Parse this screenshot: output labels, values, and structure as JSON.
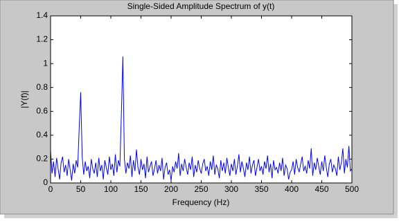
{
  "chart_data": {
    "type": "line",
    "title": "Single-Sided Amplitude Spectrum of y(t)",
    "x_label": "Frequency (Hz)",
    "y_label": "|Y(f)|",
    "xlim": [
      0,
      500
    ],
    "xticks": [
      0,
      50,
      100,
      150,
      200,
      250,
      300,
      350,
      400,
      450,
      500
    ],
    "ylim": [
      0,
      1.4
    ],
    "yticks": [
      0,
      0.2,
      0.4,
      0.6,
      0.8,
      1,
      1.2,
      1.4
    ],
    "grid": false,
    "series": [
      {
        "color": "#0000ff",
        "x": [
          0,
          2.5,
          5,
          7.5,
          10,
          12.5,
          15,
          17.5,
          20,
          22.5,
          25,
          27.5,
          30,
          32.5,
          35,
          37.5,
          40,
          42.5,
          45,
          47.5,
          50,
          52.5,
          55,
          57.5,
          60,
          62.5,
          65,
          67.5,
          70,
          72.5,
          75,
          77.5,
          80,
          82.5,
          85,
          87.5,
          90,
          92.5,
          95,
          97.5,
          100,
          102.5,
          105,
          107.5,
          110,
          112.5,
          115,
          117.5,
          120,
          122.5,
          125,
          127.5,
          130,
          132.5,
          135,
          137.5,
          140,
          142.5,
          145,
          147.5,
          150,
          152.5,
          155,
          157.5,
          160,
          162.5,
          165,
          167.5,
          170,
          172.5,
          175,
          177.5,
          180,
          182.5,
          185,
          187.5,
          190,
          192.5,
          195,
          197.5,
          200,
          202.5,
          205,
          207.5,
          210,
          212.5,
          215,
          217.5,
          220,
          222.5,
          225,
          227.5,
          230,
          232.5,
          235,
          237.5,
          240,
          242.5,
          245,
          247.5,
          250,
          252.5,
          255,
          257.5,
          260,
          262.5,
          265,
          267.5,
          270,
          272.5,
          275,
          277.5,
          280,
          282.5,
          285,
          287.5,
          290,
          292.5,
          295,
          297.5,
          300,
          302.5,
          305,
          307.5,
          310,
          312.5,
          315,
          317.5,
          320,
          322.5,
          325,
          327.5,
          330,
          332.5,
          335,
          337.5,
          340,
          342.5,
          345,
          347.5,
          350,
          352.5,
          355,
          357.5,
          360,
          362.5,
          365,
          367.5,
          370,
          372.5,
          375,
          377.5,
          380,
          382.5,
          385,
          387.5,
          390,
          392.5,
          395,
          397.5,
          400,
          402.5,
          405,
          407.5,
          410,
          412.5,
          415,
          417.5,
          420,
          422.5,
          425,
          427.5,
          430,
          432.5,
          435,
          437.5,
          440,
          442.5,
          445,
          447.5,
          450,
          452.5,
          455,
          457.5,
          460,
          462.5,
          465,
          467.5,
          470,
          472.5,
          475,
          477.5,
          480,
          482.5,
          485,
          487.5,
          490,
          492.5,
          495,
          497.5,
          500
        ],
        "values": [
          0.27,
          0.08,
          0.18,
          0.05,
          0.21,
          0.12,
          0.03,
          0.17,
          0.22,
          0.09,
          0.15,
          0.06,
          0.2,
          0.11,
          0.02,
          0.16,
          0.08,
          0.19,
          0.13,
          0.46,
          0.76,
          0.22,
          0.07,
          0.18,
          0.1,
          0.14,
          0.04,
          0.2,
          0.12,
          0.08,
          0.17,
          0.05,
          0.21,
          0.1,
          0.15,
          0.03,
          0.19,
          0.13,
          0.07,
          0.22,
          0.11,
          0.16,
          0.06,
          0.24,
          0.09,
          0.19,
          0.14,
          0.58,
          1.06,
          0.2,
          0.08,
          0.17,
          0.12,
          0.23,
          0.05,
          0.19,
          0.1,
          0.28,
          0.13,
          0.07,
          0.2,
          0.11,
          0.16,
          0.04,
          0.22,
          0.09,
          0.14,
          0.18,
          0.06,
          0.12,
          0.19,
          0.08,
          0.15,
          0.1,
          0.21,
          0.03,
          0.13,
          0.17,
          0.07,
          0.11,
          0.02,
          0.14,
          0.09,
          0.18,
          0.12,
          0.25,
          0.06,
          0.16,
          0.1,
          0.2,
          0.13,
          0.07,
          0.17,
          0.11,
          0.22,
          0.05,
          0.15,
          0.09,
          0.19,
          0.12,
          0.08,
          0.16,
          0.2,
          0.1,
          0.14,
          0.06,
          0.18,
          0.11,
          0.23,
          0.07,
          0.15,
          0.12,
          0.04,
          0.19,
          0.1,
          0.17,
          0.08,
          0.21,
          0.13,
          0.06,
          0.16,
          0.1,
          0.2,
          0.07,
          0.14,
          0.24,
          0.09,
          0.18,
          0.12,
          0.05,
          0.17,
          0.11,
          0.22,
          0.08,
          0.15,
          0.19,
          0.06,
          0.13,
          0.2,
          0.1,
          0.14,
          0.07,
          0.18,
          0.12,
          0.23,
          0.09,
          0.16,
          0.04,
          0.19,
          0.11,
          0.13,
          0.08,
          0.17,
          0.1,
          0.21,
          0.06,
          0.15,
          0.12,
          0.03,
          0.09,
          0.11,
          0.18,
          0.07,
          0.2,
          0.13,
          0.09,
          0.16,
          0.22,
          0.1,
          0.14,
          0.08,
          0.19,
          0.12,
          0.29,
          0.06,
          0.17,
          0.11,
          0.21,
          0.14,
          0.07,
          0.18,
          0.1,
          0.23,
          0.13,
          0.05,
          0.16,
          0.2,
          0.09,
          0.15,
          0.12,
          0.06,
          0.22,
          0.11,
          0.17,
          0.29,
          0.08,
          0.2,
          0.13,
          0.31,
          0.1,
          0.12
        ]
      }
    ]
  }
}
